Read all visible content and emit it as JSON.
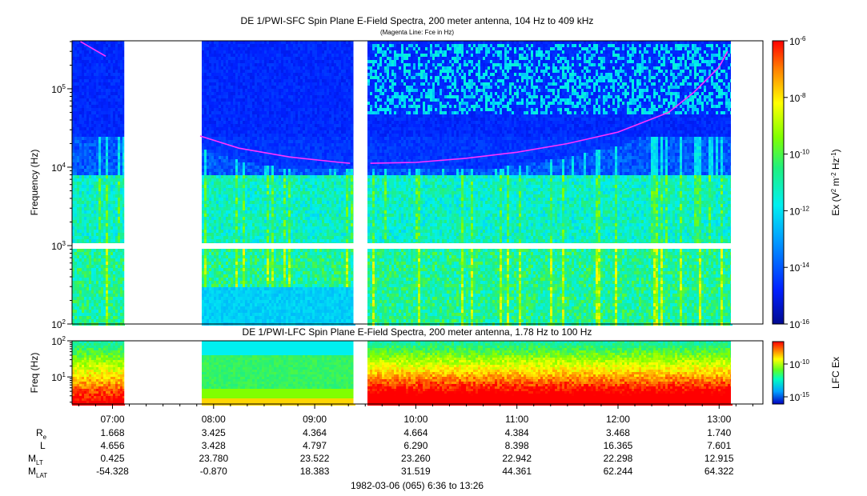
{
  "chart_data": [
    {
      "type": "heatmap",
      "title": "DE 1/PWI-SFC  Spin Plane E-Field Spectra, 200 meter antenna, 104 Hz to 409 kHz",
      "subtitle": "(Magenta Line: Fce in Hz)",
      "ylabel": "Frequency (Hz)",
      "yscale": "log",
      "ylim": [
        100,
        409000
      ],
      "yticks": [
        {
          "value": 100,
          "base": "10",
          "exp": "2"
        },
        {
          "value": 1000,
          "base": "10",
          "exp": "3"
        },
        {
          "value": 10000,
          "base": "10",
          "exp": "4"
        },
        {
          "value": 100000,
          "base": "10",
          "exp": "5"
        }
      ],
      "xlim": [
        "06:36",
        "13:26"
      ],
      "colorbar": {
        "label": "Ex (V² m⁻² Hz⁻¹)",
        "scale": "log",
        "range": [
          1e-16,
          1e-06
        ],
        "ticks": [
          {
            "base": "10",
            "exp": "-6"
          },
          {
            "base": "10",
            "exp": "-8"
          },
          {
            "base": "10",
            "exp": "-10"
          },
          {
            "base": "10",
            "exp": "-12"
          },
          {
            "base": "10",
            "exp": "-14"
          },
          {
            "base": "10",
            "exp": "-16"
          }
        ]
      },
      "data_gaps": [
        [
          "07:07",
          "07:52"
        ],
        [
          "09:23",
          "09:31"
        ],
        [
          "13:07",
          "13:26"
        ]
      ],
      "series": [
        {
          "name": "Fce",
          "color": "#ff33ff",
          "points": [
            {
              "t": "06:41",
              "f": 400000
            },
            {
              "t": "06:56",
              "f": 260000
            },
            {
              "t": "07:52",
              "f": 25000
            },
            {
              "t": "08:15",
              "f": 17500
            },
            {
              "t": "08:45",
              "f": 13500
            },
            {
              "t": "09:15",
              "f": 11500
            },
            {
              "t": "09:21",
              "f": 11200
            },
            {
              "t": "09:33",
              "f": 11200
            },
            {
              "t": "10:00",
              "f": 11500
            },
            {
              "t": "10:30",
              "f": 13000
            },
            {
              "t": "11:00",
              "f": 15500
            },
            {
              "t": "11:30",
              "f": 20000
            },
            {
              "t": "12:00",
              "f": 28000
            },
            {
              "t": "12:30",
              "f": 50000
            },
            {
              "t": "12:45",
              "f": 90000
            },
            {
              "t": "13:00",
              "f": 190000
            },
            {
              "t": "13:05",
              "f": 300000
            }
          ]
        }
      ]
    },
    {
      "type": "heatmap",
      "title": "DE 1/PWI-LFC  Spin Plane E-Field Spectra, 200 meter antenna, 1.78 Hz to 100 Hz",
      "ylabel": "Freq (Hz)",
      "yscale": "log",
      "ylim": [
        1.78,
        100
      ],
      "yticks": [
        {
          "value": 10,
          "base": "10",
          "exp": "1"
        },
        {
          "value": 100,
          "base": "10",
          "exp": "2"
        }
      ],
      "xlim": [
        "06:36",
        "13:26"
      ],
      "colorbar": {
        "label": "LFC Ex",
        "scale": "log",
        "ticks": [
          {
            "base": "10",
            "exp": "-10"
          },
          {
            "base": "10",
            "exp": "-15"
          }
        ]
      },
      "data_gaps": [
        [
          "07:07",
          "07:52"
        ],
        [
          "09:23",
          "09:31"
        ],
        [
          "13:07",
          "13:26"
        ]
      ]
    }
  ],
  "xaxis": {
    "ticks": [
      "07:00",
      "08:00",
      "09:00",
      "10:00",
      "11:00",
      "12:00",
      "13:00"
    ]
  },
  "ephemeris": {
    "rows": [
      {
        "label": "R",
        "sub": "e",
        "values": [
          "1.668",
          "3.425",
          "4.364",
          "4.664",
          "4.384",
          "3.468",
          "1.740"
        ]
      },
      {
        "label": "L",
        "sub": "",
        "values": [
          "4.656",
          "3.428",
          "4.797",
          "6.290",
          "8.398",
          "16.365",
          "7.601"
        ]
      },
      {
        "label": "M",
        "sub": "LT",
        "values": [
          "0.425",
          "23.780",
          "23.522",
          "23.260",
          "22.942",
          "22.298",
          "12.915"
        ]
      },
      {
        "label": "M",
        "sub": "LAT",
        "values": [
          "-54.328",
          "-0.870",
          "18.383",
          "31.519",
          "44.361",
          "62.244",
          "64.322"
        ]
      }
    ]
  },
  "footer": "1982-03-06 (065) 6:36 to 13:26"
}
